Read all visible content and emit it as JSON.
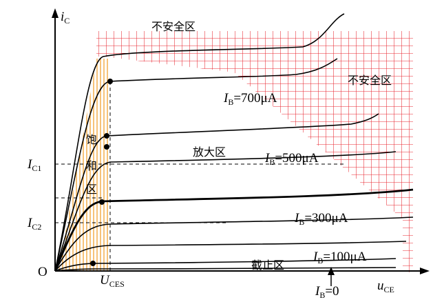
{
  "axes": {
    "y_label": {
      "var": "i",
      "sub": "C"
    },
    "x_label": {
      "var": "u",
      "sub": "CE"
    },
    "origin": "O"
  },
  "markers": {
    "ic1": {
      "var": "I",
      "sub": "C1"
    },
    "ic2": {
      "var": "I",
      "sub": "C2"
    },
    "uces": {
      "var": "U",
      "sub": "CES"
    }
  },
  "regions": {
    "unsafe_top": "不安全区",
    "unsafe_right": "不安全区",
    "active": "放大区",
    "cutoff": "截止区",
    "saturation": [
      "饱",
      "和",
      "区"
    ]
  },
  "curve_labels": [
    {
      "var": "I",
      "sub": "B",
      "rest": "=700μA"
    },
    {
      "var": "I",
      "sub": "B",
      "rest": "=500μA"
    },
    {
      "var": "I",
      "sub": "B",
      "rest": "=300μA"
    },
    {
      "var": "I",
      "sub": "B",
      "rest": "=100μA"
    },
    {
      "var": "I",
      "sub": "B",
      "rest": "=0"
    }
  ]
}
